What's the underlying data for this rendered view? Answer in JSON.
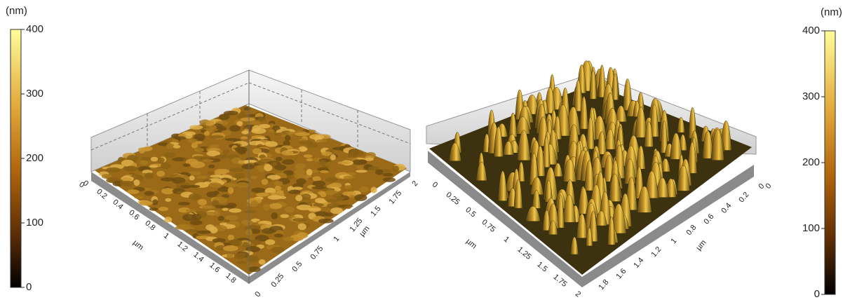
{
  "colorbars": [
    {
      "unit": "(nm)",
      "ticks": [
        "0",
        "100",
        "200",
        "300",
        "400"
      ]
    },
    {
      "unit": "(nm)",
      "ticks": [
        "0",
        "100",
        "200",
        "300",
        "400"
      ]
    }
  ],
  "plots": [
    {
      "corner_tick": "0",
      "left_axis": {
        "label": "µm",
        "ticks": [
          "0",
          "0.2",
          "0.4",
          "0.6",
          "0.8",
          "1",
          "1.2",
          "1.4",
          "1.6",
          "1.8"
        ]
      },
      "right_axis": {
        "label": "µm",
        "ticks": [
          "0",
          "0.25",
          "0.5",
          "0.75",
          "1",
          "1.25",
          "1.5",
          "1.75",
          "2"
        ]
      }
    },
    {
      "corner_tick": "0",
      "left_axis": {
        "label": "µm",
        "ticks": [
          "0",
          "0.25",
          "0.5",
          "0.75",
          "1",
          "1.25",
          "1.5",
          "1.75",
          "2"
        ]
      },
      "right_axis": {
        "label": "µm",
        "ticks": [
          "0",
          "0.2",
          "0.4",
          "0.6",
          "0.8",
          "1",
          "1.2",
          "1.4",
          "1.6",
          "1.8"
        ]
      }
    }
  ]
}
